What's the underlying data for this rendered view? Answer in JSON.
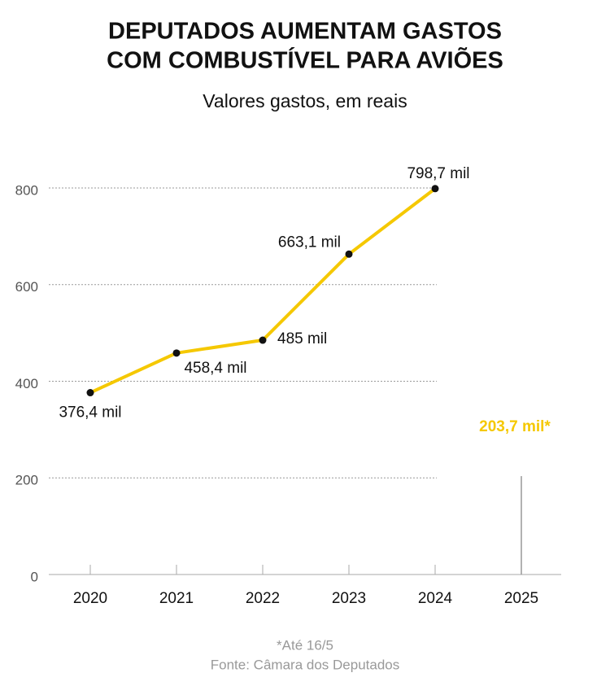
{
  "chart_data": {
    "type": "line",
    "title": [
      "DEPUTADOS AUMENTAM GASTOS",
      "COM COMBUSTÍVEL PARA AVIÕES"
    ],
    "subtitle": "Valores gastos, em reais",
    "categories": [
      "2020",
      "2021",
      "2022",
      "2023",
      "2024",
      "2025"
    ],
    "values": [
      376.4,
      458.4,
      485,
      663.1,
      798.7,
      null
    ],
    "value_labels": [
      "376,4 mil",
      "458,4 mil",
      "485 mil",
      "663,1 mil",
      "798,7 mil",
      null
    ],
    "color": "#f5c800",
    "partial": {
      "value": 203.7,
      "label": "203,7 mil*",
      "color": "#f5c800"
    },
    "ylim": [
      0,
      800
    ],
    "yticks": [
      0,
      200,
      400,
      600,
      800
    ],
    "grid": true,
    "notes": [
      "*Até 16/5",
      "Fonte: Câmara dos Deputados"
    ]
  }
}
